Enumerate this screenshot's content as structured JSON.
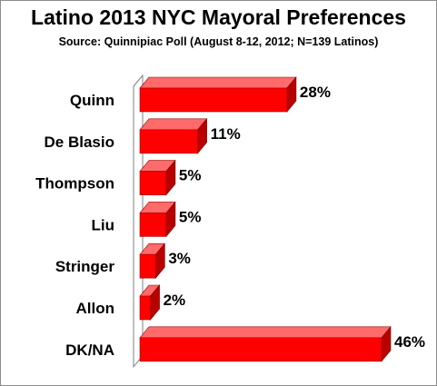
{
  "title": "Latino 2013 NYC Mayoral Preferences",
  "subtitle": "Source: Quinnipiac Poll (August 8-12, 2012;  N=139 Latinos)",
  "colors": {
    "bar_front": "#ff0000",
    "bar_top": "#ff6a6a",
    "bar_side": "#b80000",
    "wall": "#7f7f7f"
  },
  "chart_data": {
    "type": "bar",
    "orientation": "horizontal",
    "style": "3d",
    "title": "Latino 2013 NYC Mayoral Preferences",
    "subtitle": "Source: Quinnipiac Poll (August 8-12, 2012;  N=139 Latinos)",
    "categories": [
      "Quinn",
      "De Blasio",
      "Thompson",
      "Liu",
      "Stringer",
      "Allon",
      "DK/NA"
    ],
    "values": [
      28,
      11,
      5,
      5,
      3,
      2,
      46
    ],
    "value_labels": [
      "28%",
      "11%",
      "5%",
      "5%",
      "3%",
      "2%",
      "46%"
    ],
    "unit": "%",
    "xlim": [
      0,
      46
    ],
    "grid": false,
    "legend": "none"
  }
}
